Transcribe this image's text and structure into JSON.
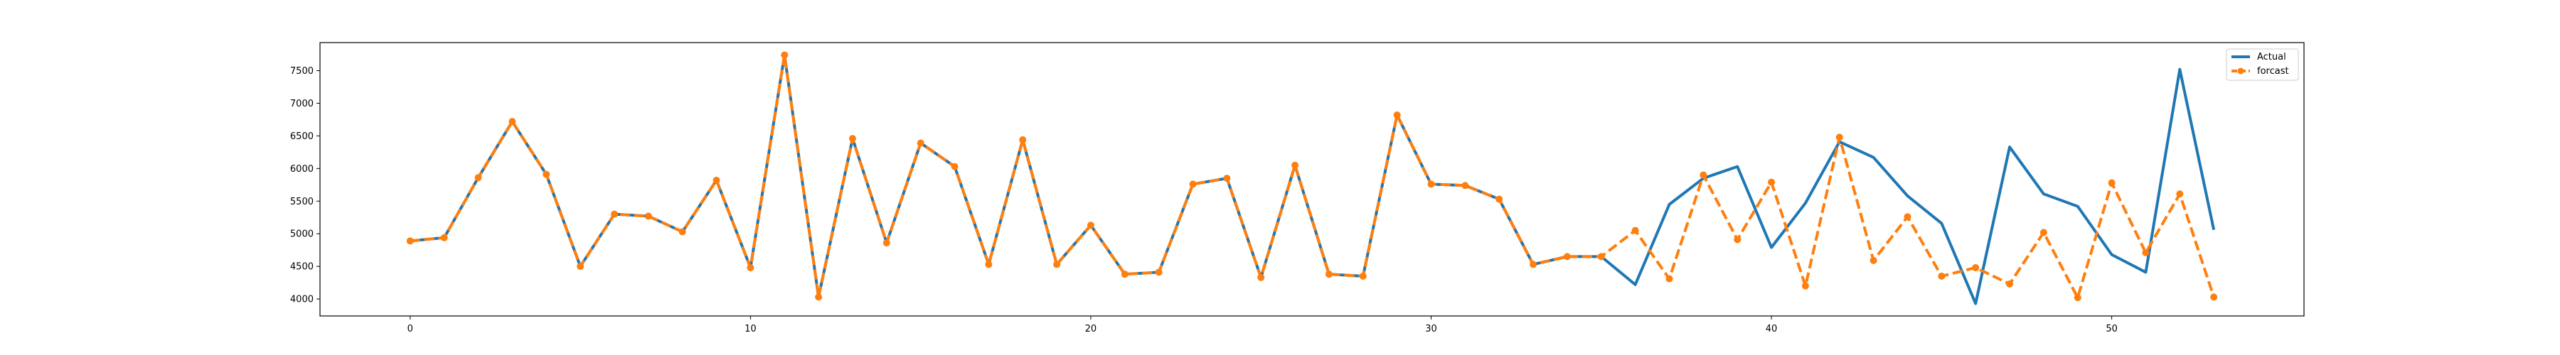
{
  "chart_data": {
    "type": "line",
    "title": "",
    "xlabel": "",
    "ylabel": "",
    "xlim": [
      -2.65,
      55.65
    ],
    "ylim": [
      3740,
      7930
    ],
    "xticks": [
      0,
      10,
      20,
      30,
      40,
      50
    ],
    "yticks": [
      4000,
      4500,
      5000,
      5500,
      6000,
      6500,
      7000,
      7500
    ],
    "grid": false,
    "legend_position": "top-right",
    "colors": {
      "actual": "#1f77b4",
      "forecast": "#ff7f0e"
    },
    "series": [
      {
        "name": "Actual",
        "style": "solid",
        "x": [
          0,
          1,
          2,
          3,
          4,
          5,
          6,
          7,
          8,
          9,
          10,
          11,
          12,
          13,
          14,
          15,
          16,
          17,
          18,
          19,
          20,
          21,
          22,
          23,
          24,
          25,
          26,
          27,
          28,
          29,
          30,
          31,
          32,
          33,
          34,
          35,
          36,
          37,
          38,
          39,
          40,
          41,
          42,
          43,
          44,
          45,
          46,
          47,
          48,
          49,
          50,
          51,
          52,
          53
        ],
        "values": [
          4890,
          4940,
          5860,
          6720,
          5910,
          4500,
          5300,
          5270,
          5030,
          5820,
          4480,
          7740,
          4030,
          6460,
          4860,
          6390,
          6030,
          4530,
          6440,
          4530,
          5130,
          4380,
          4410,
          5760,
          5850,
          4330,
          6050,
          4380,
          4350,
          6820,
          5760,
          5740,
          5530,
          4530,
          4650,
          4650,
          4220,
          5450,
          5850,
          6030,
          4790,
          5470,
          6410,
          6170,
          5580,
          5160,
          3930,
          6330,
          5610,
          5420,
          4680,
          4410,
          7520,
          5060
        ]
      },
      {
        "name": "forcast",
        "style": "dashed",
        "x": [
          0,
          1,
          2,
          3,
          4,
          5,
          6,
          7,
          8,
          9,
          10,
          11,
          12,
          13,
          14,
          15,
          16,
          17,
          18,
          19,
          20,
          21,
          22,
          23,
          24,
          25,
          26,
          27,
          28,
          29,
          30,
          31,
          32,
          33,
          34,
          35,
          36,
          37,
          38,
          39,
          40,
          41,
          42,
          43,
          44,
          45,
          46,
          47,
          48,
          49,
          50,
          51,
          52,
          53
        ],
        "values": [
          4890,
          4940,
          5860,
          6720,
          5910,
          4500,
          5300,
          5270,
          5030,
          5820,
          4480,
          7740,
          4030,
          6460,
          4860,
          6390,
          6030,
          4530,
          6440,
          4530,
          5130,
          4380,
          4410,
          5760,
          5850,
          4330,
          6050,
          4380,
          4350,
          6820,
          5760,
          5740,
          5530,
          4530,
          4650,
          4650,
          5050,
          4310,
          5900,
          4910,
          5790,
          4200,
          6480,
          4590,
          5260,
          4350,
          4480,
          4230,
          5020,
          4020,
          5780,
          4710,
          5610,
          4030
        ]
      }
    ]
  }
}
